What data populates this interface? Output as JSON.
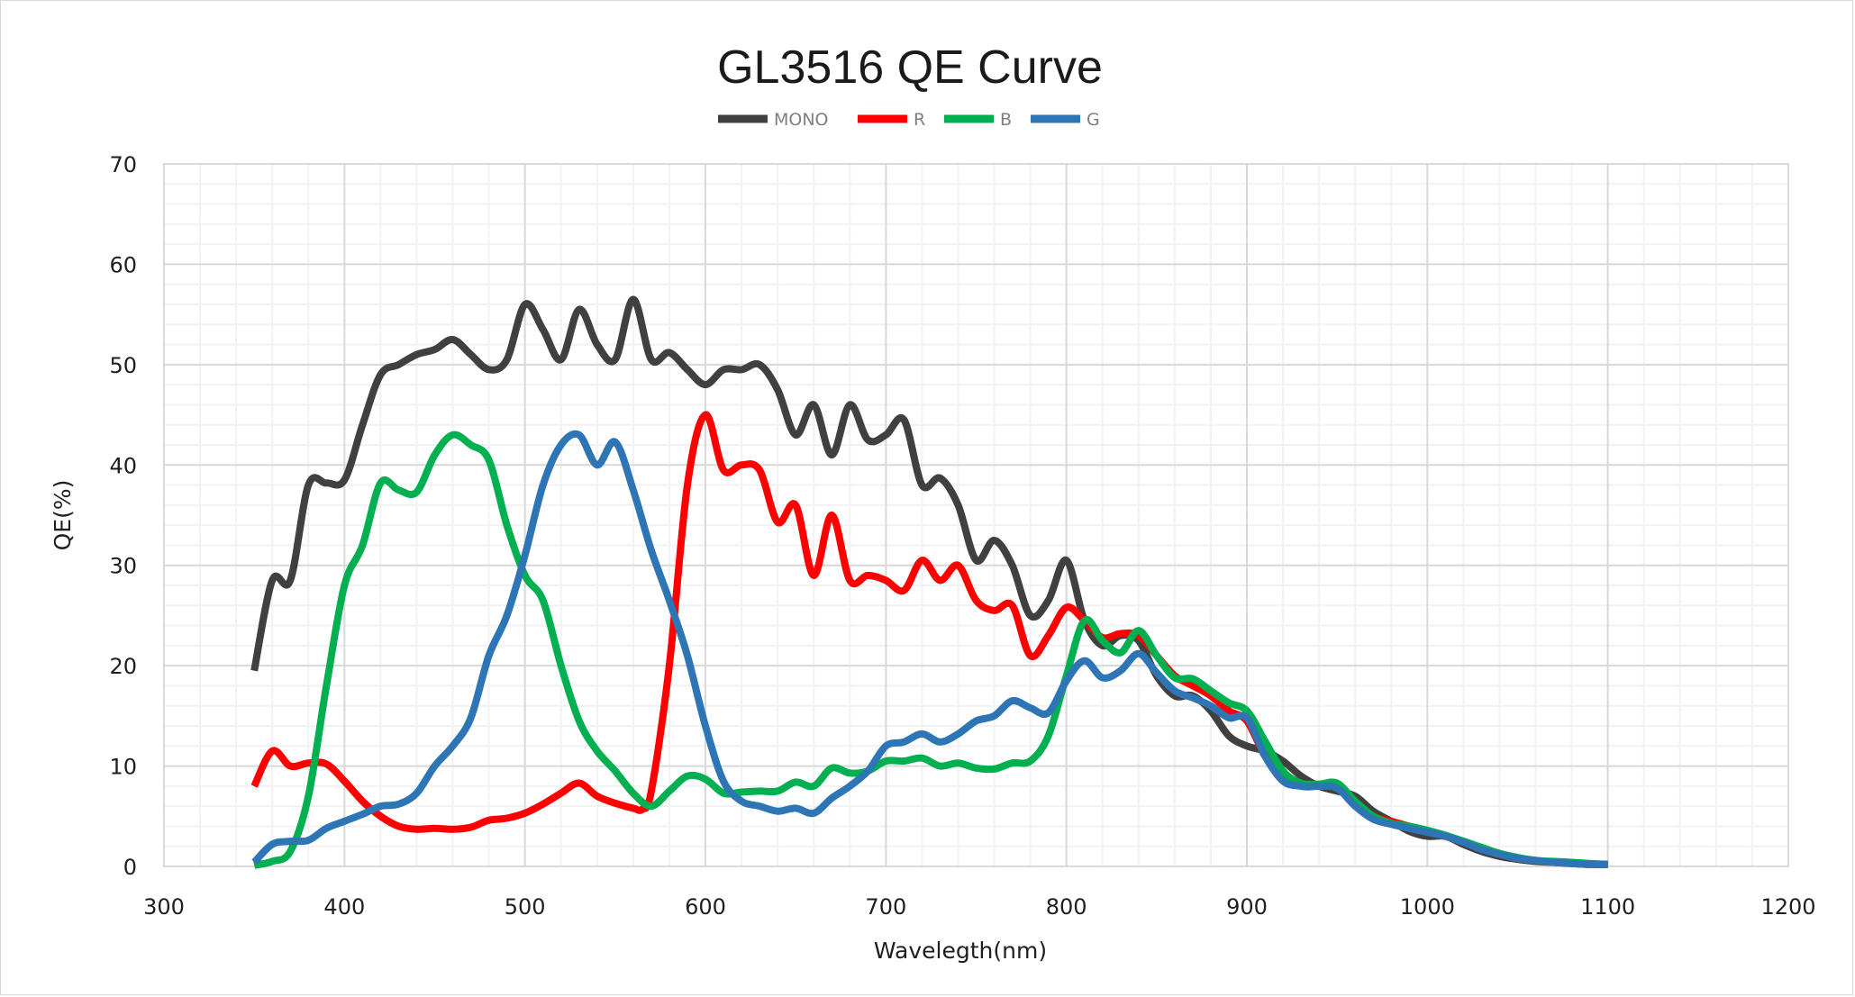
{
  "chart_data": {
    "type": "line",
    "title": "GL3516 QE Curve",
    "xlabel": "Wavelegth(nm)",
    "ylabel": "QE(%)",
    "xlim": [
      300,
      1200
    ],
    "ylim": [
      0,
      70
    ],
    "xticks": [
      300,
      400,
      500,
      600,
      700,
      800,
      900,
      1000,
      1100,
      1200
    ],
    "yticks": [
      0,
      10,
      20,
      30,
      40,
      50,
      60,
      70
    ],
    "x_minor_step": 20,
    "y_minor_step": 2,
    "grid": true,
    "legend_position": "top-center",
    "series": [
      {
        "name": "MONO",
        "color": "#404040",
        "x": [
          350,
          360,
          370,
          380,
          390,
          400,
          410,
          420,
          430,
          440,
          450,
          460,
          470,
          480,
          490,
          500,
          510,
          520,
          530,
          540,
          550,
          560,
          570,
          580,
          590,
          600,
          610,
          620,
          630,
          640,
          650,
          660,
          670,
          680,
          690,
          700,
          710,
          720,
          730,
          740,
          750,
          760,
          770,
          780,
          790,
          800,
          810,
          820,
          830,
          840,
          850,
          860,
          870,
          880,
          890,
          900,
          910,
          920,
          930,
          940,
          950,
          960,
          970,
          980,
          990,
          1000,
          1010,
          1020,
          1030,
          1040,
          1050,
          1060,
          1070,
          1080,
          1090,
          1100
        ],
        "values": [
          19.5,
          28.5,
          28.5,
          38,
          38.2,
          38.5,
          44,
          49,
          50,
          51,
          51.5,
          52.5,
          51,
          49.5,
          50.5,
          56,
          53.5,
          50.5,
          55.5,
          52,
          50.5,
          56.5,
          50.5,
          51.2,
          49.5,
          48,
          49.5,
          49.5,
          50,
          47.5,
          43,
          46,
          41,
          46,
          42.5,
          43,
          44.5,
          38,
          38.7,
          36,
          30.5,
          32.5,
          30,
          25,
          26.5,
          30.5,
          24.5,
          22,
          23,
          22.5,
          19,
          17,
          17,
          15.5,
          13,
          12,
          11.5,
          10.5,
          9,
          8,
          7.5,
          7,
          5.5,
          4.5,
          3.5,
          3,
          3,
          2.2,
          1.5,
          1,
          0.7,
          0.5,
          0.4,
          0.3,
          0.2,
          0.2
        ]
      },
      {
        "name": "R",
        "color": "#ff0000",
        "x": [
          350,
          360,
          370,
          380,
          390,
          400,
          410,
          420,
          430,
          440,
          450,
          460,
          470,
          480,
          490,
          500,
          510,
          520,
          530,
          540,
          550,
          560,
          565,
          570,
          580,
          590,
          600,
          610,
          620,
          630,
          640,
          650,
          660,
          670,
          680,
          690,
          700,
          710,
          720,
          730,
          740,
          750,
          760,
          770,
          780,
          790,
          800,
          810,
          820,
          830,
          840,
          850,
          860,
          870,
          880,
          890,
          900,
          910,
          920,
          930,
          940,
          950,
          960,
          970,
          980,
          990,
          1000,
          1010,
          1020,
          1030,
          1040,
          1050,
          1060,
          1070,
          1080,
          1090,
          1100
        ],
        "values": [
          8,
          11.5,
          10,
          10.3,
          10.2,
          8.5,
          6.5,
          5,
          4,
          3.7,
          3.8,
          3.7,
          3.9,
          4.6,
          4.8,
          5.3,
          6.2,
          7.3,
          8.3,
          7,
          6.3,
          5.8,
          5.7,
          7.5,
          20,
          38,
          45,
          39.5,
          40,
          39.5,
          34.3,
          36,
          29,
          35,
          28.5,
          29,
          28.5,
          27.5,
          30.5,
          28.5,
          30,
          26.5,
          25.5,
          26,
          21,
          23,
          25.8,
          24.5,
          22.8,
          23.2,
          23,
          21,
          19,
          18,
          17,
          15.5,
          14.5,
          11,
          9,
          8,
          8,
          8,
          6.5,
          5,
          4.5,
          4,
          3.5,
          3,
          2.5,
          1.8,
          1.2,
          0.8,
          0.6,
          0.4,
          0.3,
          0.2,
          0.2
        ]
      },
      {
        "name": "B",
        "color": "#00b050",
        "x": [
          350,
          360,
          370,
          380,
          390,
          400,
          410,
          420,
          430,
          440,
          450,
          460,
          470,
          480,
          490,
          500,
          510,
          520,
          530,
          540,
          550,
          560,
          570,
          580,
          590,
          600,
          610,
          620,
          630,
          640,
          650,
          660,
          670,
          680,
          690,
          700,
          710,
          720,
          730,
          740,
          750,
          760,
          770,
          780,
          790,
          800,
          810,
          820,
          830,
          840,
          850,
          860,
          870,
          880,
          890,
          900,
          910,
          920,
          930,
          940,
          950,
          960,
          970,
          980,
          990,
          1000,
          1010,
          1020,
          1030,
          1040,
          1050,
          1060,
          1070,
          1080,
          1090,
          1100
        ],
        "values": [
          0.1,
          0.5,
          1.5,
          7,
          18,
          28,
          32,
          38.2,
          37.5,
          37.3,
          41,
          43,
          42,
          40.5,
          34,
          29,
          26.5,
          20,
          14.5,
          11.5,
          9.5,
          7.3,
          6,
          7.5,
          9,
          8.7,
          7.3,
          7.4,
          7.5,
          7.5,
          8.4,
          8,
          9.8,
          9.3,
          9.5,
          10.5,
          10.5,
          10.8,
          10,
          10.3,
          9.8,
          9.7,
          10.3,
          10.5,
          13,
          19,
          24.5,
          22.5,
          21.3,
          23.5,
          21,
          18.8,
          18.7,
          17.5,
          16.3,
          15.5,
          12.5,
          9.5,
          8.3,
          8.2,
          8.3,
          6.5,
          5,
          4.3,
          4,
          3.6,
          3.1,
          2.5,
          1.9,
          1.3,
          0.9,
          0.6,
          0.5,
          0.4,
          0.3,
          0.2
        ]
      },
      {
        "name": "G",
        "color": "#2e75b6",
        "x": [
          350,
          360,
          370,
          380,
          390,
          400,
          410,
          420,
          430,
          440,
          450,
          460,
          470,
          480,
          490,
          500,
          510,
          520,
          530,
          540,
          550,
          560,
          570,
          580,
          590,
          600,
          610,
          620,
          630,
          640,
          650,
          660,
          670,
          680,
          690,
          700,
          710,
          720,
          730,
          740,
          750,
          760,
          770,
          780,
          790,
          800,
          810,
          820,
          830,
          840,
          850,
          860,
          870,
          880,
          890,
          900,
          910,
          920,
          930,
          940,
          950,
          960,
          970,
          980,
          990,
          1000,
          1010,
          1020,
          1030,
          1040,
          1050,
          1060,
          1070,
          1080,
          1090,
          1100
        ],
        "values": [
          0.4,
          2.2,
          2.5,
          2.6,
          3.8,
          4.5,
          5.2,
          6,
          6.2,
          7.3,
          10,
          12,
          14.8,
          21,
          25,
          31,
          38,
          42,
          43,
          40,
          42.3,
          37.5,
          31.5,
          26.5,
          21,
          14,
          8.5,
          6.5,
          6,
          5.5,
          5.8,
          5.3,
          6.8,
          8,
          9.5,
          12,
          12.4,
          13.2,
          12.4,
          13.2,
          14.5,
          15,
          16.5,
          15.8,
          15.3,
          18.5,
          20.5,
          18.8,
          19.5,
          21.2,
          19.3,
          17.5,
          16.8,
          16,
          14.8,
          14.8,
          11,
          8.5,
          8,
          8,
          7.8,
          6,
          4.7,
          4.2,
          3.8,
          3.4,
          3,
          2.4,
          1.7,
          1.2,
          0.8,
          0.6,
          0.4,
          0.3,
          0.2,
          0.2
        ]
      }
    ]
  }
}
